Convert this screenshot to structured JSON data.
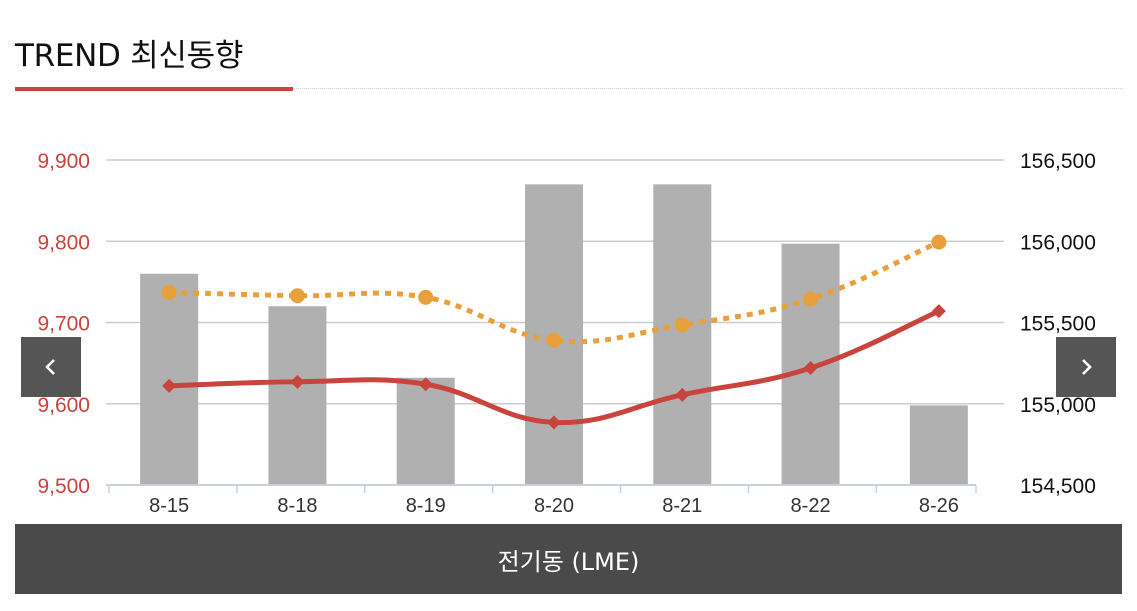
{
  "header": {
    "title": "TREND 최신동향"
  },
  "footer": {
    "label": "전기동 (LME)"
  },
  "nav": {
    "prev_icon": "chevron-left-icon",
    "next_icon": "chevron-right-icon"
  },
  "colors": {
    "accent": "#c9443c",
    "bars": "#b0b0b0",
    "dotted_line": "#e8a03c",
    "solid_line": "#c9443c",
    "footer_bg": "#4a4a4a",
    "nav_bg": "#555555"
  },
  "chart_data": {
    "type": "bar",
    "categories": [
      "8-15",
      "8-18",
      "8-19",
      "8-20",
      "8-21",
      "8-22",
      "8-26"
    ],
    "left_axis": {
      "ticks": [
        "9,500",
        "9,600",
        "9,700",
        "9,800",
        "9,900"
      ],
      "ylim": [
        9500,
        9900
      ],
      "color": "#c9443c"
    },
    "right_axis": {
      "ticks": [
        "154,500",
        "155,000",
        "155,500",
        "156,000",
        "156,500"
      ],
      "ylim": [
        154500,
        156500
      ],
      "color": "#111111"
    },
    "grid": true,
    "series": [
      {
        "type": "bar",
        "axis": "left",
        "values": [
          9760,
          9720,
          9632,
          9870,
          9870,
          9797,
          9598
        ]
      },
      {
        "type": "line",
        "style": "dotted",
        "marker": "circle",
        "axis": "left",
        "values": [
          9737,
          9733,
          9731,
          9678,
          9697,
          9729,
          9799
        ]
      },
      {
        "type": "line",
        "style": "solid",
        "marker": "diamond",
        "axis": "right",
        "values": [
          155110,
          155135,
          155120,
          154885,
          155055,
          155220,
          155570
        ]
      }
    ]
  }
}
